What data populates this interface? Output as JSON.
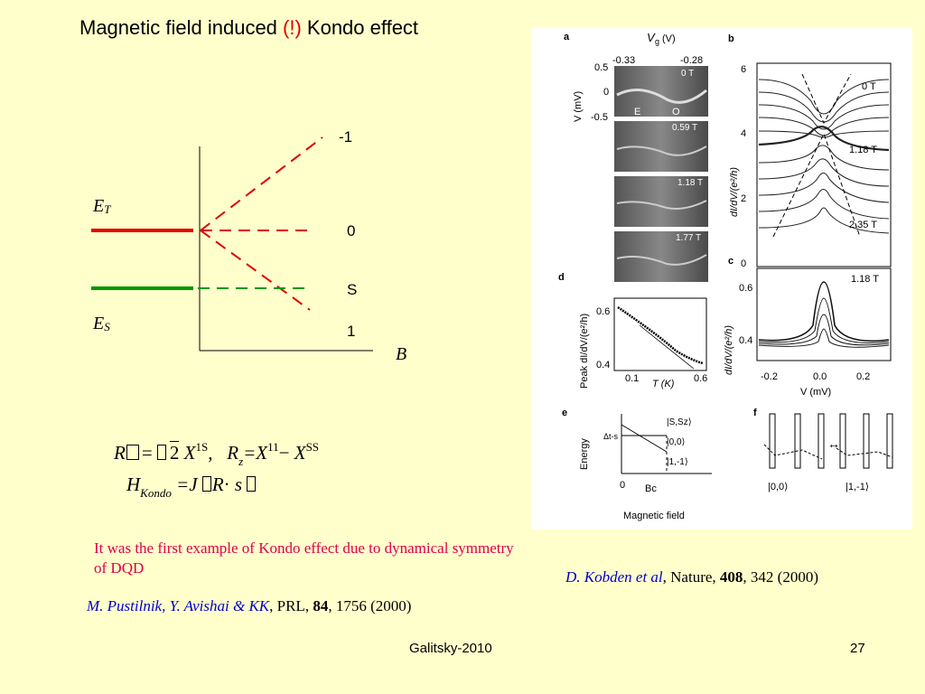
{
  "slide": {
    "title_pre": "Magnetic field induced ",
    "title_bang": "(!)",
    "title_post": " Kondo effect",
    "footer_center": "Galitsky-2010",
    "page_number": "27"
  },
  "diagram": {
    "level_minus1": "-1",
    "level_0": "0",
    "level_S": "S",
    "level_1": "1",
    "ET_main": "E",
    "ET_sub": "T",
    "ES_main": "E",
    "ES_sub": "S",
    "axis_label": "B",
    "colors": {
      "triplet": "#e00000",
      "singlet": "#009900",
      "axis": "#000000"
    }
  },
  "formulas": {
    "line1_R": "R",
    "line1_eq": "= ",
    "line1_sqrt2": "2",
    "line1_X": "X",
    "line1_sup1S": "1S",
    "line1_comma": ",",
    "line1_R2": "R",
    "line1_z": "z",
    "line1_eqX": "=X",
    "line1_sup11": "11",
    "line1_minus": "− ",
    "line1_X2": "X",
    "line1_supSS": "SS",
    "line2_H": "H",
    "line2_Kondo": "Kondo",
    "line2_eqJ": "=J ",
    "line2_R": "R",
    "line2_dot": "· ",
    "line2_s": "s"
  },
  "note": "It was the first example of Kondo effect due to dynamical symmetry of DQD",
  "ref_left": {
    "authors": "M. Pustilnik, Y. Avishai & KK",
    "journal": ", PRL, ",
    "volume": "84",
    "rest": ", 1756 (2000)"
  },
  "ref_right": {
    "authors": "D. Kobden et al",
    "journal": ", Nature, ",
    "volume": "408",
    "rest": ", 342 (2000)"
  },
  "figure": {
    "panel_a": "a",
    "panel_b": "b",
    "panel_c": "c",
    "panel_d": "d",
    "panel_e": "e",
    "panel_f": "f",
    "a_xlabel": "V",
    "a_xlabel_sub": "g",
    "a_xunit": "(V)",
    "a_xtick_left": "-0.33",
    "a_xtick_right": "-0.28",
    "a_ylabel": "V (mV)",
    "a_yticks": [
      "0.5",
      "0",
      "-0.5"
    ],
    "a_fields": [
      "0 T",
      "0.59 T",
      "1.18 T",
      "1.77 T"
    ],
    "a_E": "E",
    "a_O": "O",
    "b_ylabel": "dI/dV/(e²/h)",
    "b_yticks": [
      "6",
      "4",
      "2",
      "0"
    ],
    "b_fields": [
      "0 T",
      "1.18 T",
      "2.35 T"
    ],
    "c_field": "1.18 T",
    "c_ylabel": "dI/dV/(e²/h)",
    "c_yticks": [
      "0.6",
      "0.4"
    ],
    "c_xticks": [
      "-0.2",
      "0.0",
      "0.2"
    ],
    "c_xlabel": "V (mV)",
    "d_ylabel": "Peak dI/dV/(e²/h)",
    "d_yticks": [
      "0.6",
      "0.4"
    ],
    "d_xticks": [
      "0.1",
      "0.6"
    ],
    "d_xlabel": "T (K)",
    "e_ylabel": "Energy",
    "e_states": [
      "|S,Sz⟩",
      "|0,0⟩",
      "|1,-1⟩"
    ],
    "e_delta": "Δt-s",
    "e_x0": "0",
    "e_Bc": "Bc",
    "e_xlabel": "Magnetic field",
    "f_states": [
      "|0,0⟩",
      "|1,-1⟩"
    ]
  }
}
